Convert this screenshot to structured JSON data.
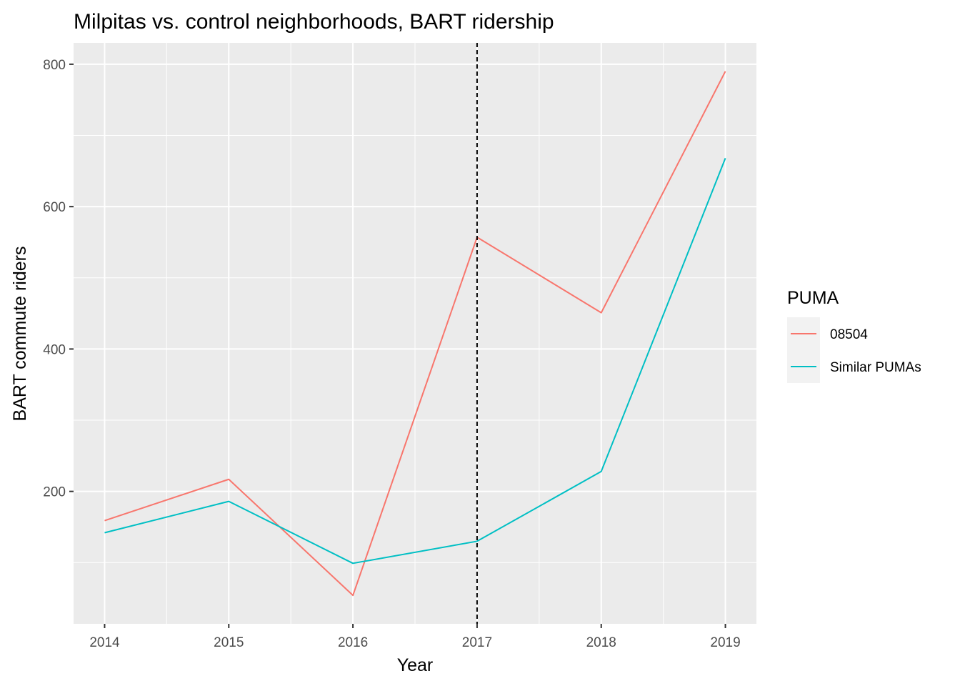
{
  "chart_data": {
    "type": "line",
    "title": "Milpitas vs. control neighborhoods, BART ridership",
    "xlabel": "Year",
    "ylabel": "BART commute riders",
    "x": [
      2014,
      2015,
      2016,
      2017,
      2018,
      2019
    ],
    "x_ticks": [
      "2014",
      "2015",
      "2016",
      "2017",
      "2018",
      "2019"
    ],
    "y_ticks": [
      200,
      400,
      600,
      800
    ],
    "y_tick_labels": [
      "200",
      "400",
      "600",
      "800"
    ],
    "xlim": [
      2013.75,
      2019.25
    ],
    "ylim": [
      14,
      830
    ],
    "grid": true,
    "legend": {
      "title": "PUMA",
      "position": "right"
    },
    "vline": {
      "x": 2017,
      "style": "dashed",
      "color": "#000000"
    },
    "series": [
      {
        "name": "08504",
        "color": "#F8766D",
        "values": [
          159,
          217,
          54,
          557,
          451,
          790
        ]
      },
      {
        "name": "Similar PUMAs",
        "color": "#00BFC4",
        "values": [
          142,
          186,
          99,
          130,
          228,
          668
        ]
      }
    ]
  }
}
